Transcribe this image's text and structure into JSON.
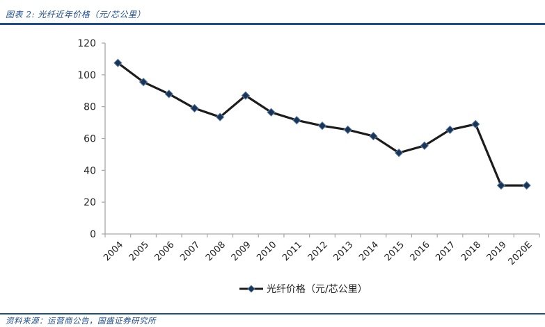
{
  "figure": {
    "title": "图表 2: 光纤近年价格（元/芯公里）",
    "source": "资料来源：运营商公告，国盛证券研究所"
  },
  "colors": {
    "accent_rule": "#1a4f8b",
    "title_text": "#1f4e8c",
    "line": "#1c1c1c",
    "marker": "#1b3557",
    "axis": "#a6a6a6"
  },
  "chart_data": {
    "type": "line",
    "title": "",
    "xlabel": "",
    "ylabel": "",
    "categories": [
      "2004",
      "2005",
      "2006",
      "2007",
      "2008",
      "2009",
      "2010",
      "2011",
      "2012",
      "2013",
      "2014",
      "2015",
      "2016",
      "2017",
      "2018",
      "2019",
      "2020E"
    ],
    "series": [
      {
        "name": "光纤价格（元/芯公里）",
        "values": [
          107.5,
          95.5,
          88,
          79,
          73.5,
          87,
          76.5,
          71.5,
          68,
          65.5,
          61.5,
          51,
          55.5,
          65.5,
          69,
          30.5,
          30.5
        ],
        "marker": "diamond"
      }
    ],
    "ylim": [
      0,
      120
    ],
    "yticks": [
      0,
      20,
      40,
      60,
      80,
      100,
      120
    ],
    "grid": false,
    "legend_position": "bottom"
  },
  "legend": {
    "label": "光纤价格（元/芯公里）"
  }
}
